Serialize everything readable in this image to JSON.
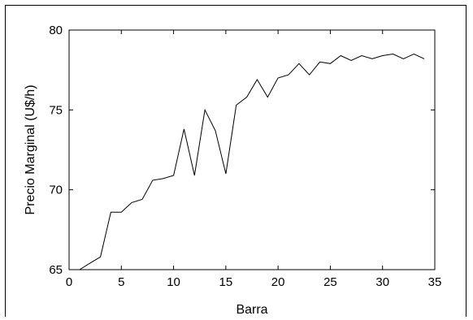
{
  "chart_data": {
    "type": "line",
    "title": "",
    "xlabel": "Barra",
    "ylabel": "Precio Marginal (U$/h)",
    "xlim": [
      0,
      35
    ],
    "ylim": [
      65,
      80
    ],
    "grid": false,
    "xticks": [
      0,
      5,
      10,
      15,
      20,
      25,
      30,
      35
    ],
    "yticks": [
      65,
      70,
      75,
      80
    ],
    "series": [
      {
        "x": [
          1,
          2,
          3,
          4,
          5,
          6,
          7,
          8,
          9,
          10,
          11,
          12,
          13,
          14,
          15,
          16,
          17,
          18,
          19,
          20,
          21,
          22,
          23,
          24,
          25,
          26,
          27,
          28,
          29,
          30,
          31,
          32,
          33,
          34
        ],
        "y": [
          65.0,
          65.4,
          65.8,
          68.6,
          68.6,
          69.2,
          69.4,
          70.6,
          70.7,
          70.9,
          73.8,
          70.9,
          75.0,
          73.7,
          71.0,
          75.3,
          75.8,
          76.9,
          75.8,
          77.0,
          77.2,
          77.9,
          77.2,
          78.0,
          77.9,
          78.4,
          78.1,
          78.4,
          78.2,
          78.4,
          78.5,
          78.2,
          78.5,
          78.2
        ]
      }
    ]
  }
}
